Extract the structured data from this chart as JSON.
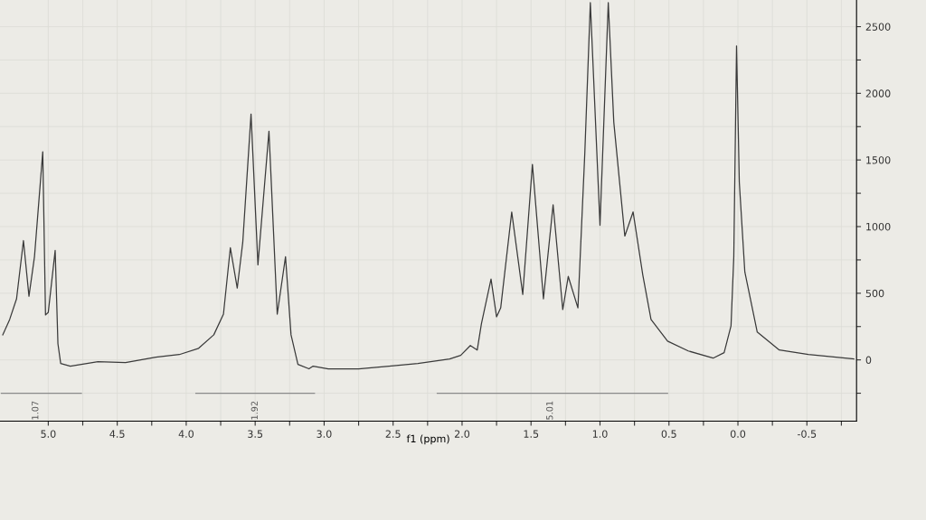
{
  "chart_data": {
    "type": "line",
    "xlabel": "f1 (ppm)",
    "x": [
      5.33,
      5.28,
      5.23,
      5.18,
      5.14,
      5.1,
      5.04,
      5.02,
      5.0,
      4.95,
      4.93,
      4.91,
      4.84,
      4.64,
      4.44,
      4.22,
      4.05,
      3.91,
      3.8,
      3.73,
      3.68,
      3.63,
      3.59,
      3.53,
      3.48,
      3.4,
      3.34,
      3.28,
      3.24,
      3.19,
      3.11,
      3.08,
      2.97,
      2.75,
      2.53,
      2.32,
      2.09,
      2.01,
      1.94,
      1.89,
      1.86,
      1.79,
      1.75,
      1.72,
      1.64,
      1.56,
      1.49,
      1.41,
      1.34,
      1.27,
      1.23,
      1.16,
      1.11,
      1.07,
      1.0,
      0.94,
      0.9,
      0.82,
      0.76,
      0.69,
      0.63,
      0.51,
      0.36,
      0.18,
      0.1,
      0.05,
      0.03,
      0.01,
      -0.01,
      -0.05,
      -0.14,
      -0.3,
      -0.51,
      -0.84
    ],
    "series": [
      {
        "color": "#3a3a3a",
        "values": [
          188,
          303,
          458,
          895,
          478,
          774,
          1561,
          337,
          357,
          821,
          121,
          -27,
          -47,
          -13,
          -20,
          20,
          40,
          87,
          188,
          343,
          841,
          538,
          882,
          1844,
          713,
          1716,
          343,
          774,
          188,
          -34,
          -67,
          -47,
          -67,
          -67,
          -47,
          -27,
          7,
          34,
          108,
          74,
          269,
          606,
          323,
          390,
          1110,
          491,
          1467,
          458,
          1164,
          377,
          626,
          390,
          1555,
          2680,
          1010,
          2680,
          1783,
          929,
          1110,
          639,
          303,
          141,
          67,
          13,
          54,
          256,
          774,
          2356,
          1333,
          660,
          209,
          74,
          40,
          7
        ]
      },
      {
        "type": "line",
        "color": "#8a8a8a",
        "x": [
          5.34,
          4.76
        ],
        "values": [
          -250,
          -250
        ]
      },
      {
        "type": "line",
        "color": "#8a8a8a",
        "x": [
          3.93,
          3.07
        ],
        "values": [
          -250,
          -250
        ]
      },
      {
        "type": "line",
        "color": "#8a8a8a",
        "x": [
          2.18,
          0.51
        ],
        "values": [
          -250,
          -250
        ]
      }
    ],
    "xlim": [
      5.35,
      -0.86
    ],
    "ylim": [
      -460,
      2700
    ],
    "xticks": [
      {
        "value": 5.0,
        "label": "5.0"
      },
      {
        "value": 4.75,
        "label": null
      },
      4.5,
      {
        "value": 4.25,
        "label": null
      },
      {
        "value": 4.0,
        "label": "4.0"
      },
      {
        "value": 3.75,
        "label": null
      },
      3.5,
      {
        "value": 3.25,
        "label": null
      },
      {
        "value": 3.0,
        "label": "3.0"
      },
      {
        "value": 2.75,
        "label": null
      },
      2.5,
      {
        "value": 2.25,
        "label": null
      },
      {
        "value": 2.0,
        "label": "2.0"
      },
      {
        "value": 1.75,
        "label": null
      },
      1.5,
      {
        "value": 1.25,
        "label": null
      },
      {
        "value": 1.0,
        "label": "1.0"
      },
      {
        "value": 0.75,
        "label": null
      },
      0.5,
      {
        "value": 0.25,
        "label": null
      },
      {
        "value": 0.0,
        "label": "0.0"
      },
      {
        "value": -0.25,
        "label": null
      },
      -0.5,
      {
        "value": -0.75,
        "label": null
      }
    ],
    "yticks": [
      {
        "value": -250,
        "label": null
      },
      0,
      {
        "value": 250,
        "label": null
      },
      500,
      {
        "value": 750,
        "label": null
      },
      1000,
      {
        "value": 1250,
        "label": null
      },
      1500,
      {
        "value": 1750,
        "label": null
      },
      2000,
      {
        "value": 2250,
        "label": null
      },
      2500
    ],
    "annotations": [
      {
        "text": "1.07",
        "x": 5.09,
        "y": -250
      },
      {
        "text": "1.92",
        "x": 3.5,
        "y": -250
      },
      {
        "text": "5.01",
        "x": 1.36,
        "y": -250
      }
    ],
    "grid": true
  }
}
